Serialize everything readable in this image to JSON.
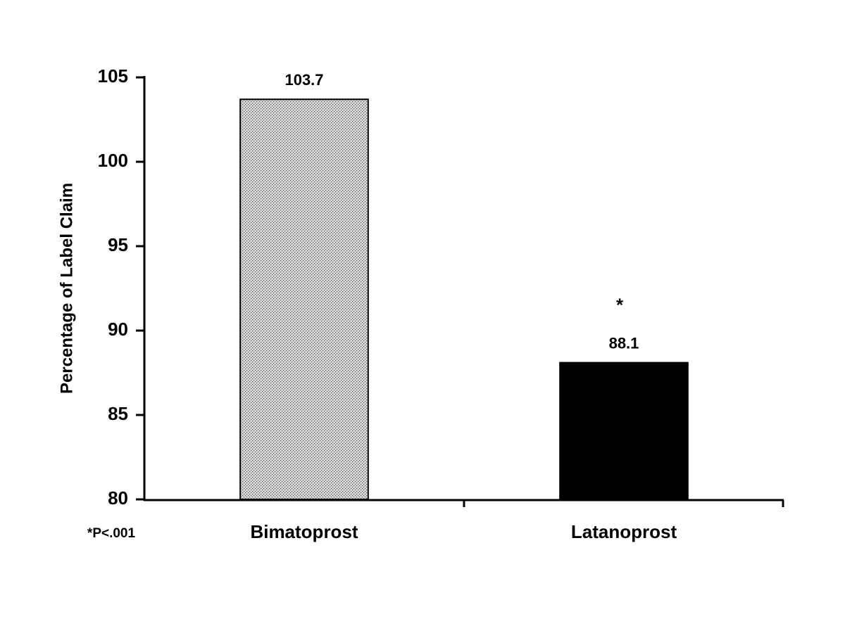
{
  "chart_data": {
    "type": "bar",
    "y_label": "Percentage of Label Claim",
    "categories": [
      "Bimatoprost",
      "Latanoprost"
    ],
    "values": [
      103.7,
      88.1
    ],
    "colors": [
      "#d6d6d6",
      "#000000"
    ],
    "ylim": [
      80,
      105
    ],
    "yticks": [
      80,
      85,
      90,
      95,
      100,
      105
    ],
    "significance_marker": "*",
    "footnote": "*P<.001",
    "grid": false
  }
}
